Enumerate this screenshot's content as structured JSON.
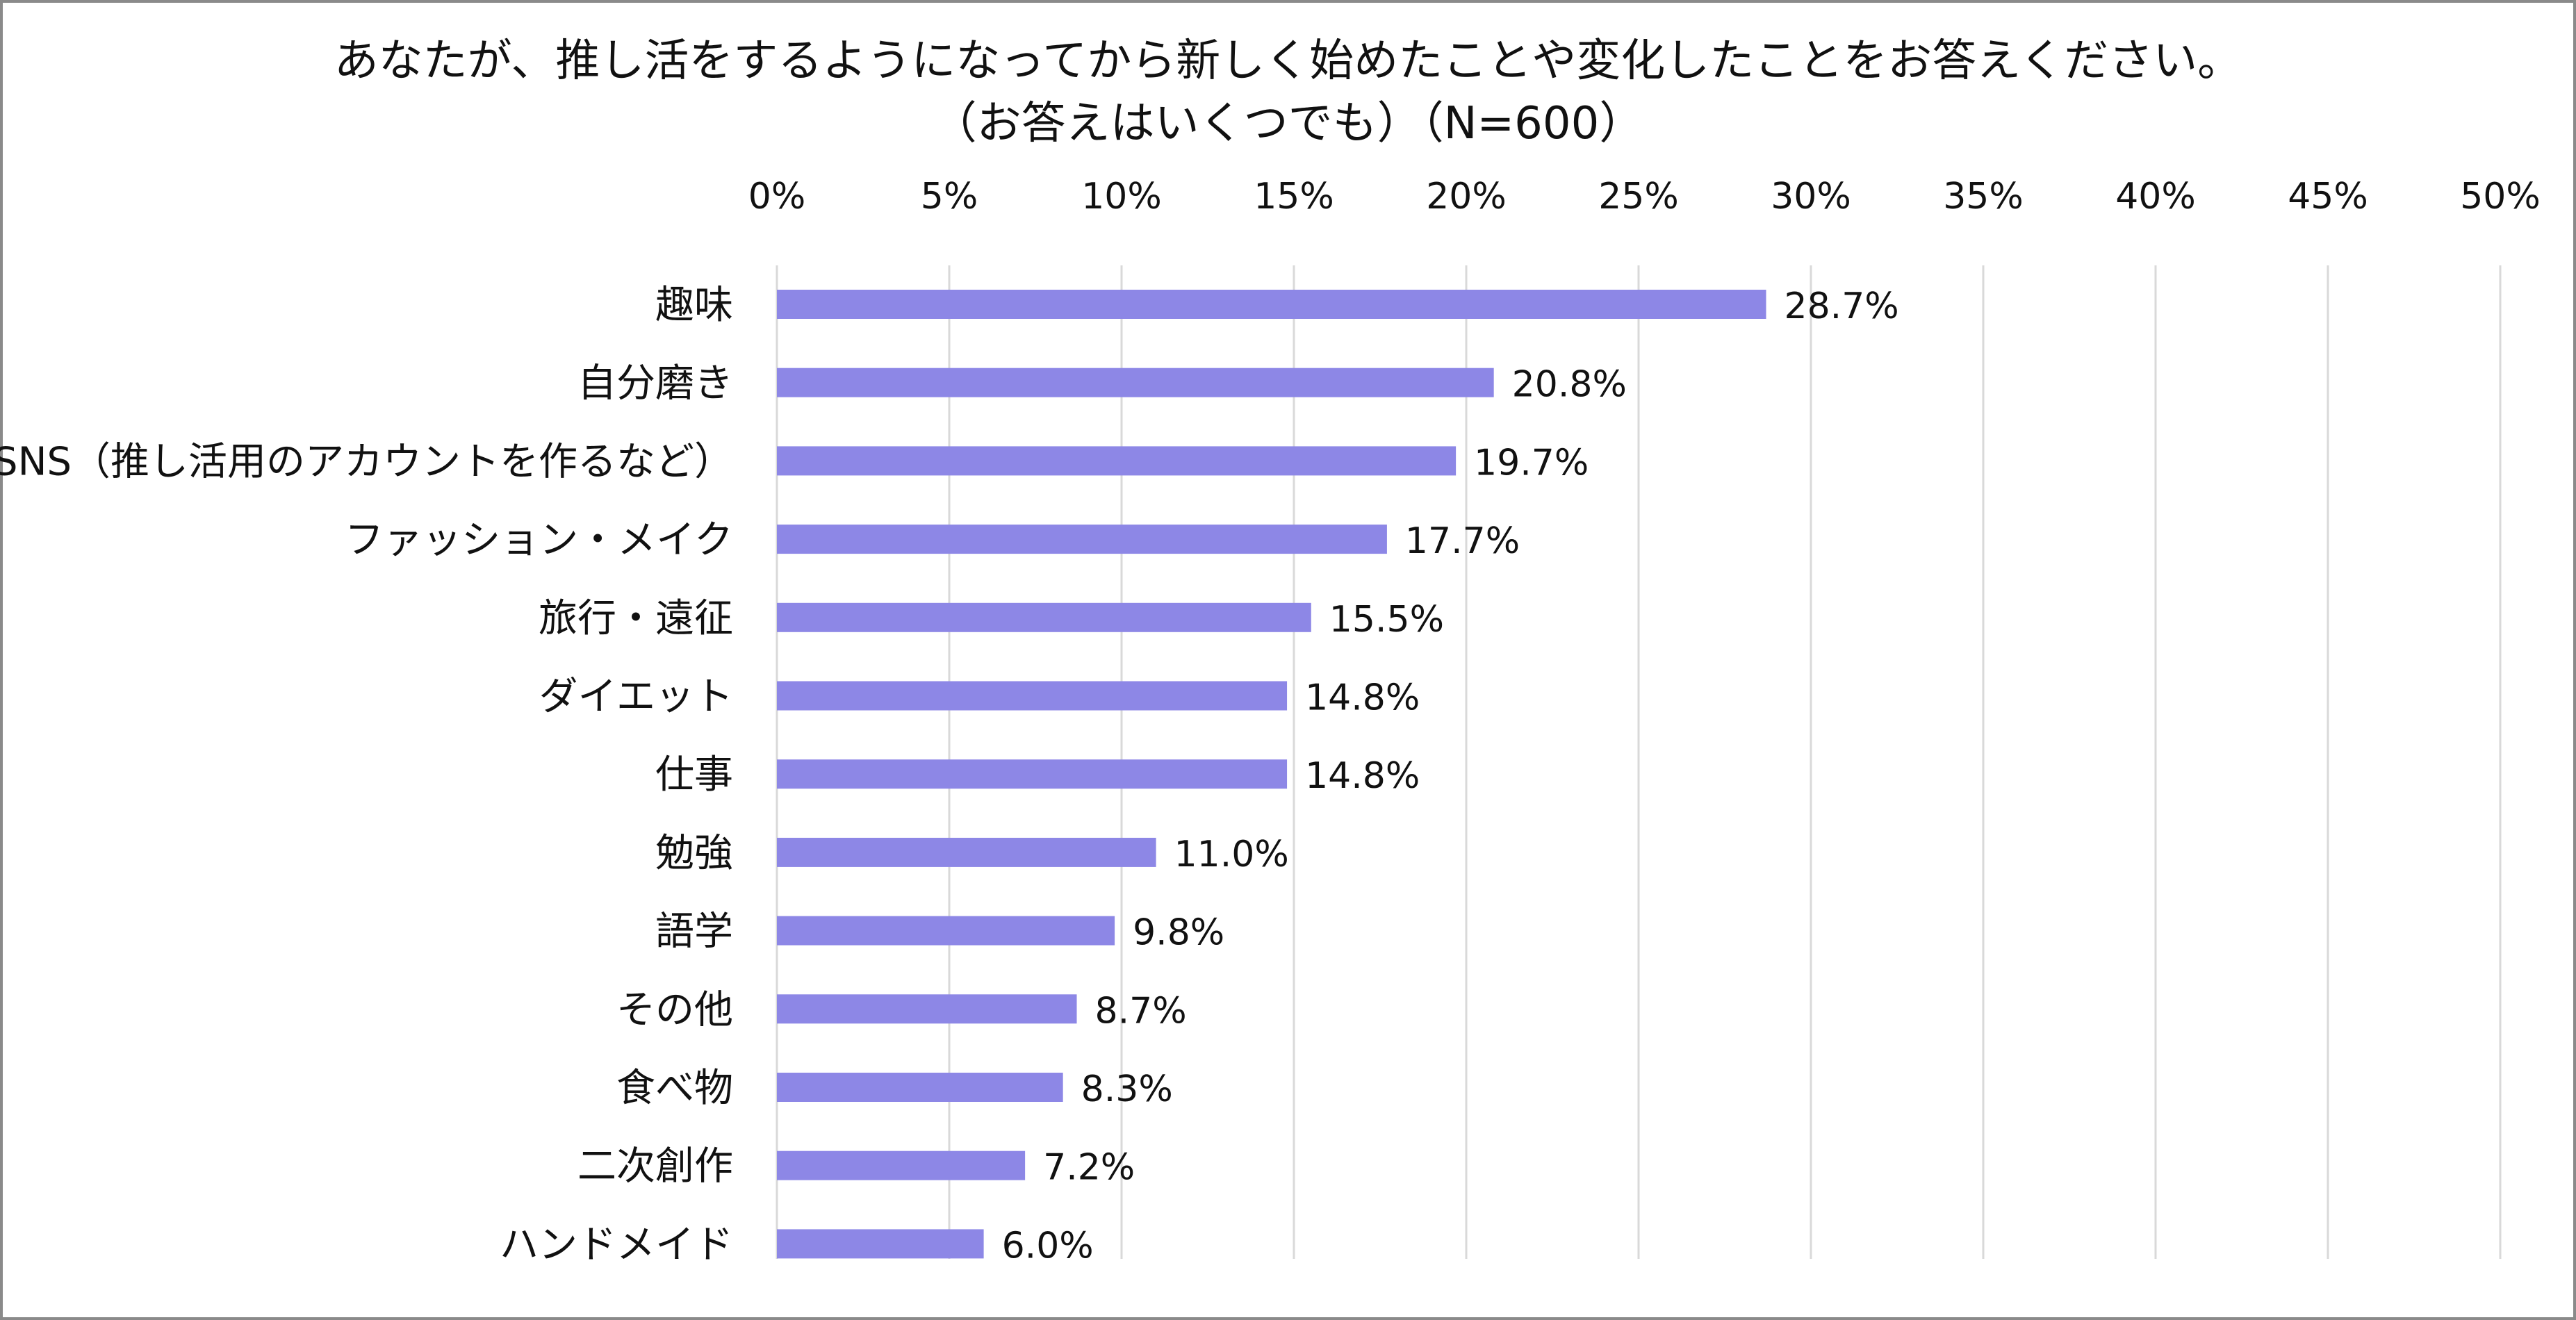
{
  "chart_data": {
    "type": "bar",
    "orientation": "horizontal",
    "title": "あなたが、推し活をするようになってから新しく始めたことや変化したことをお答えください。",
    "subtitle": "（お答えはいくつでも）（N=600）",
    "categories": [
      "趣味",
      "自分磨き",
      "SNS（推し活用のアカウントを作るなど）",
      "ファッション・メイク",
      "旅行・遠征",
      "ダイエット",
      "仕事",
      "勉強",
      "語学",
      "その他",
      "食べ物",
      "二次創作",
      "ハンドメイド"
    ],
    "values": [
      28.7,
      20.8,
      19.7,
      17.7,
      15.5,
      14.8,
      14.8,
      11.0,
      9.8,
      8.7,
      8.3,
      7.2,
      6.0
    ],
    "value_labels": [
      "28.7%",
      "20.8%",
      "19.7%",
      "17.7%",
      "15.5%",
      "14.8%",
      "14.8%",
      "11.0%",
      "9.8%",
      "8.7%",
      "8.3%",
      "7.2%",
      "6.0%"
    ],
    "xlim": [
      0,
      50
    ],
    "x_ticks": [
      0,
      5,
      10,
      15,
      20,
      25,
      30,
      35,
      40,
      45,
      50
    ],
    "x_tick_labels": [
      "0%",
      "5%",
      "10%",
      "15%",
      "20%",
      "25%",
      "30%",
      "35%",
      "40%",
      "45%",
      "50%"
    ],
    "x_axis_position": "top",
    "grid": true,
    "legend": "none",
    "bar_color": "#8d87e6",
    "grid_color": "#d9d9d9"
  }
}
